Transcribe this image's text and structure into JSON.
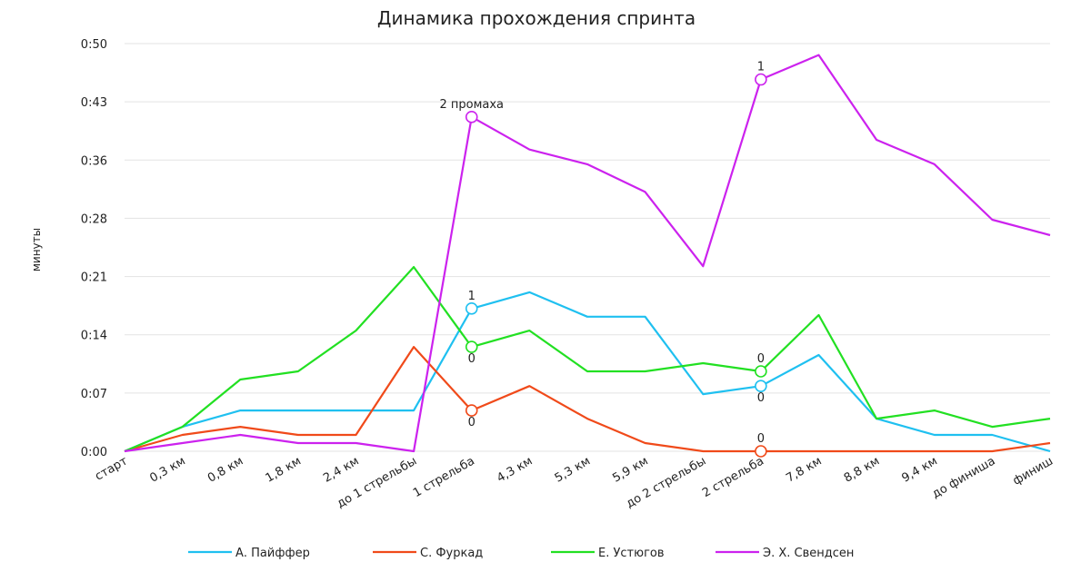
{
  "chart_data": {
    "type": "line",
    "title": "Динамика прохождения спринта",
    "ylabel": "минуты",
    "xlabel": "",
    "categories": [
      "старт",
      "0,3 км",
      "0,8 км",
      "1,8 км",
      "2,4 км",
      "до 1 стрельбы",
      "1 стрельба",
      "4,3 км",
      "5,3 км",
      "5,9 км",
      "до 2 стрельбы",
      "2 стрельба",
      "7,8 км",
      "8,8 км",
      "9,4 км",
      "до финиша",
      "финиш"
    ],
    "y_ticks": [
      "0:00",
      "0:07",
      "0:14",
      "0:21",
      "0:28",
      "0:36",
      "0:43",
      "0:50"
    ],
    "ylim": [
      0,
      50
    ],
    "grid": true,
    "legend_position": "bottom",
    "series": [
      {
        "name": "А. Пайффер",
        "color": "#1fc0f0",
        "values": [
          0,
          3,
          5,
          5,
          5,
          5,
          17.5,
          19.5,
          16.5,
          16.5,
          7,
          8,
          11.8,
          4,
          2,
          2,
          0
        ]
      },
      {
        "name": "С. Фуркад",
        "color": "#f04a1a",
        "values": [
          0,
          2,
          3,
          2,
          2,
          12.8,
          5,
          8,
          4,
          1,
          0,
          0,
          0,
          0,
          0,
          0,
          1
        ]
      },
      {
        "name": "Е. Устюгов",
        "color": "#22e022",
        "values": [
          0,
          3,
          8.8,
          9.8,
          14.8,
          22.6,
          12.8,
          14.8,
          9.8,
          9.8,
          10.8,
          9.8,
          16.7,
          4,
          5,
          3,
          4
        ]
      },
      {
        "name": "Э. Х. Свендсен",
        "color": "#cc22ee",
        "values": [
          0,
          1,
          2,
          1,
          1,
          0,
          41,
          37,
          35.2,
          31.8,
          22.7,
          45.6,
          48.6,
          38.2,
          35.2,
          28.4,
          26.5
        ]
      }
    ],
    "annotations": [
      {
        "series": 3,
        "index": 6,
        "text": "2 промаха",
        "position": "above"
      },
      {
        "series": 3,
        "index": 11,
        "text": "1",
        "position": "above"
      },
      {
        "series": 0,
        "index": 6,
        "text": "1",
        "position": "above"
      },
      {
        "series": 2,
        "index": 6,
        "text": "0",
        "position": "below"
      },
      {
        "series": 1,
        "index": 6,
        "text": "0",
        "position": "below"
      },
      {
        "series": 2,
        "index": 11,
        "text": "0",
        "position": "above"
      },
      {
        "series": 0,
        "index": 11,
        "text": "0",
        "position": "below"
      },
      {
        "series": 1,
        "index": 11,
        "text": "0",
        "position": "above"
      }
    ]
  }
}
